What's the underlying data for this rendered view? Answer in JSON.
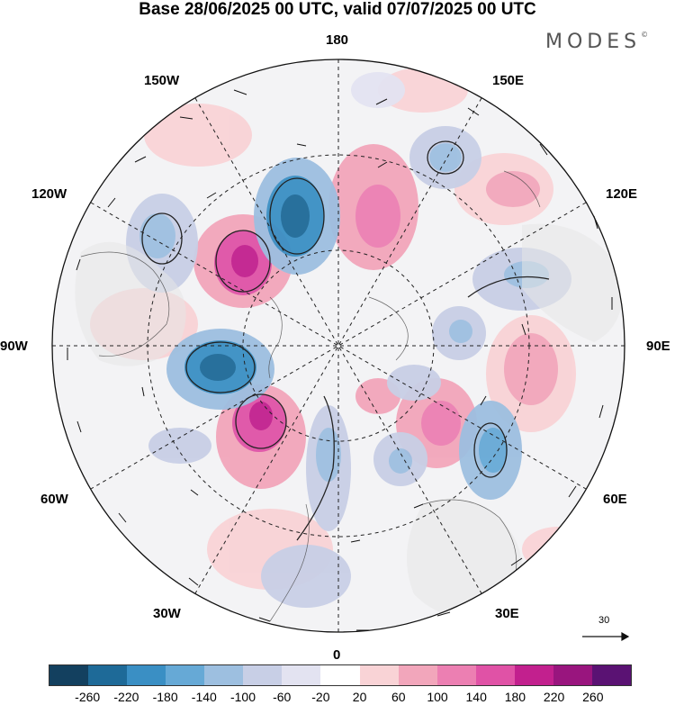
{
  "title": "Base 28/06/2025 00 UTC, valid 07/07/2025 00 UTC",
  "brand": "MODES",
  "brand_mark": "©",
  "longitude_labels": {
    "top": "180",
    "bottom": "0",
    "left": "90W",
    "right": "90E",
    "upper_left": "150W",
    "upper_right": "150E",
    "mid_upper_left": "120W",
    "mid_upper_right": "120E",
    "mid_lower_left": "60W",
    "mid_lower_right": "60E",
    "lower_left": "30W",
    "lower_right": "30E"
  },
  "wind_scale": {
    "value": "30"
  },
  "colorbar": {
    "colors": [
      "#13405f",
      "#1e6a98",
      "#3a8fc4",
      "#66a9d6",
      "#9dbfe0",
      "#c8cfe6",
      "#e3e3f1",
      "#ffffff",
      "#f9d3d6",
      "#f2a6bb",
      "#ec7fb2",
      "#e052a6",
      "#c2208e",
      "#99157e",
      "#5a1273"
    ],
    "tick_labels": [
      "-260",
      "-220",
      "-180",
      "-140",
      "-100",
      "-60",
      "-20",
      "20",
      "60",
      "100",
      "140",
      "180",
      "220",
      "260"
    ]
  }
}
